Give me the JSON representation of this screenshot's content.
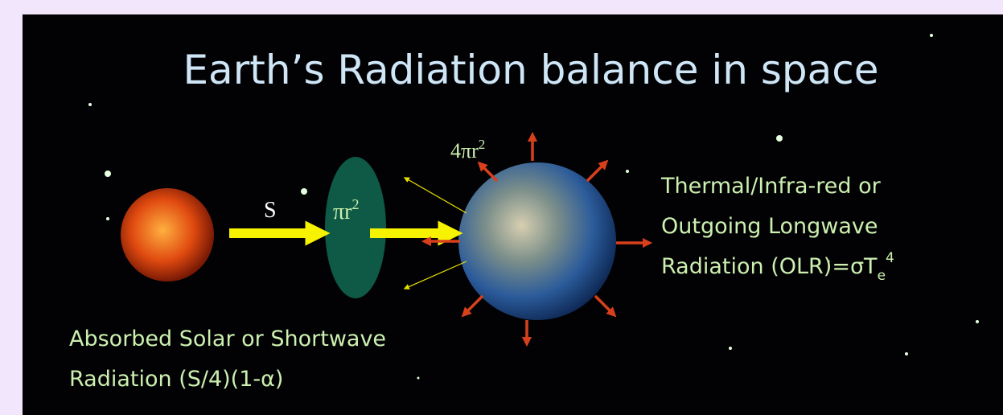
{
  "title": "Earth’s Radiation balance in space",
  "labels": {
    "solar_flux": "S",
    "disk_area": {
      "base": "πr",
      "exp": "2"
    },
    "sphere_area": {
      "base": "4πr",
      "exp": "2"
    },
    "olr": {
      "lines": [
        "Thermal/Infra-red or",
        "Outgoing Longwave"
      ],
      "last": {
        "text": "Radiation (OLR)=σT",
        "sub": "e",
        "sup": "4"
      }
    },
    "absorbed": {
      "lines": [
        "Absorbed Solar or Shortwave",
        "Radiation  (S/4)(1-α)"
      ]
    }
  }
}
